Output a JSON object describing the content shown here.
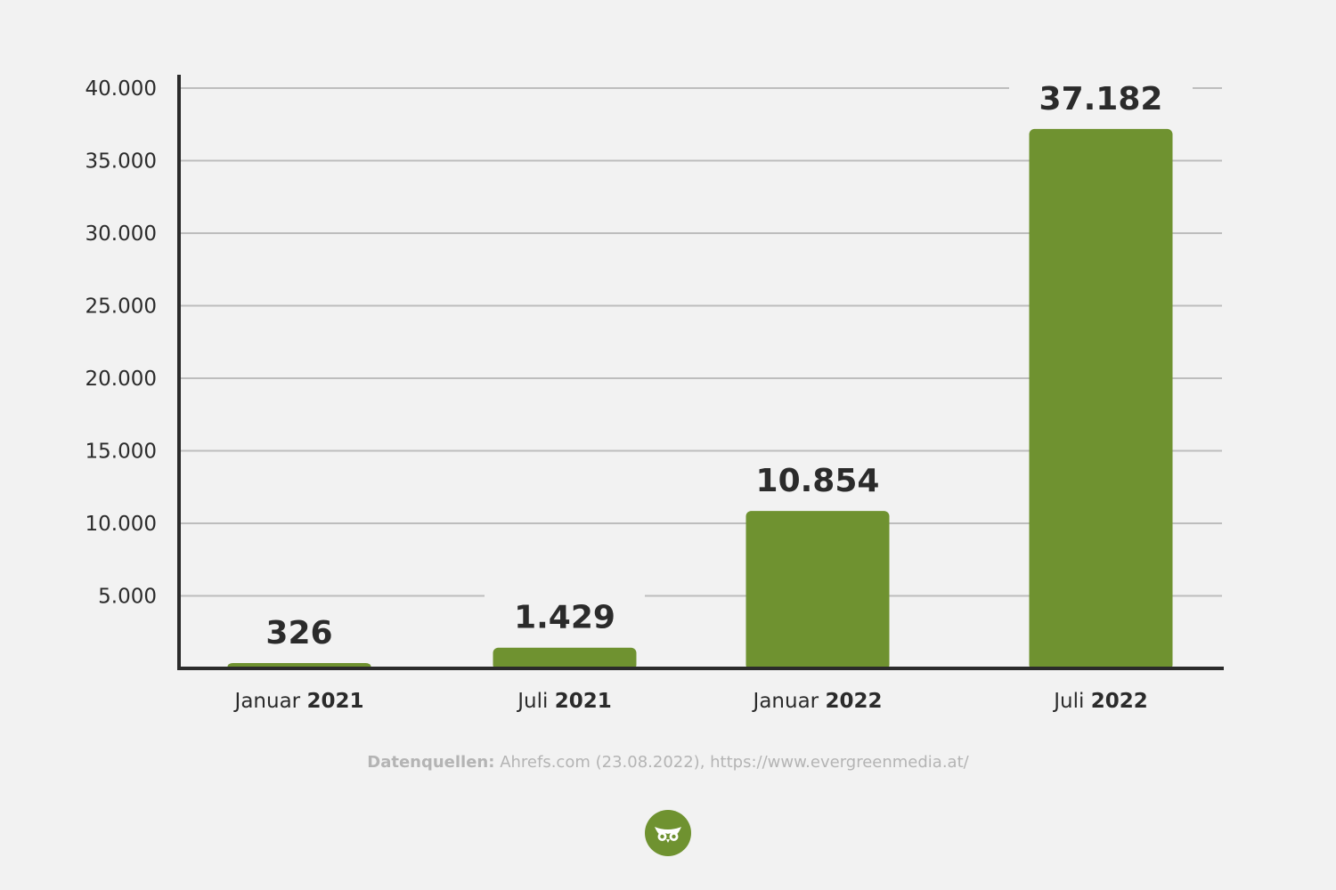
{
  "chart_data": {
    "type": "bar",
    "categories": [
      "Januar 2021",
      "Juli 2021",
      "Januar 2022",
      "Juli 2022"
    ],
    "category_labels": [
      {
        "month": "Januar",
        "year": "2021"
      },
      {
        "month": "Juli",
        "year": "2021"
      },
      {
        "month": "Januar",
        "year": "2022"
      },
      {
        "month": "Juli",
        "year": "2022"
      }
    ],
    "values": [
      326,
      1429,
      10854,
      37182
    ],
    "value_labels": [
      "326",
      "1.429",
      "10.854",
      "37.182"
    ],
    "yticks": [
      5000,
      10000,
      15000,
      20000,
      25000,
      30000,
      35000,
      40000
    ],
    "ytick_labels": [
      "5.000",
      "10.000",
      "15.000",
      "20.000",
      "25.000",
      "30.000",
      "35.000",
      "40.000"
    ],
    "ylim": [
      0,
      40000
    ],
    "grid": true,
    "bar_color": "#6f9230"
  },
  "footer": {
    "source_label": "Datenquellen:",
    "source_text": "Ahrefs.com (23.08.2022), https://www.evergreenmedia.at/"
  },
  "logo": {
    "icon": "owl-icon",
    "color": "#6f9230"
  }
}
